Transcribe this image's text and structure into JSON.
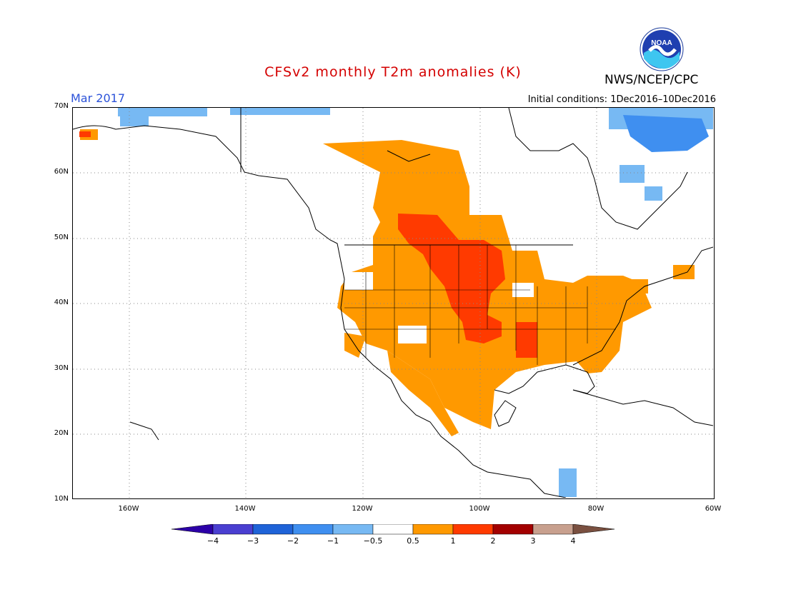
{
  "title": "CFSv2 monthly T2m anomalies (K)",
  "agency": "NWS/NCEP/CPC",
  "logo_text": "NOAA",
  "valid_month": "Mar 2017",
  "initial_conditions": "Initial conditions: 1Dec2016–10Dec2016",
  "map": {
    "lat_labels": [
      "70N",
      "60N",
      "50N",
      "40N",
      "30N",
      "20N",
      "10N"
    ],
    "lon_labels": [
      "160W",
      "140W",
      "120W",
      "100W",
      "80W",
      "60W"
    ]
  },
  "legend": {
    "labels": [
      "−4",
      "−3",
      "−2",
      "−1",
      "−0.5",
      "0.5",
      "1",
      "2",
      "3",
      "4"
    ],
    "colors": [
      "#2c00a8",
      "#4a3fd1",
      "#1f63d8",
      "#3f8ff0",
      "#77b9f3",
      "#ffffff",
      "#ff9900",
      "#ff3a00",
      "#a30000",
      "#c8a08e",
      "#7a5040"
    ]
  }
}
